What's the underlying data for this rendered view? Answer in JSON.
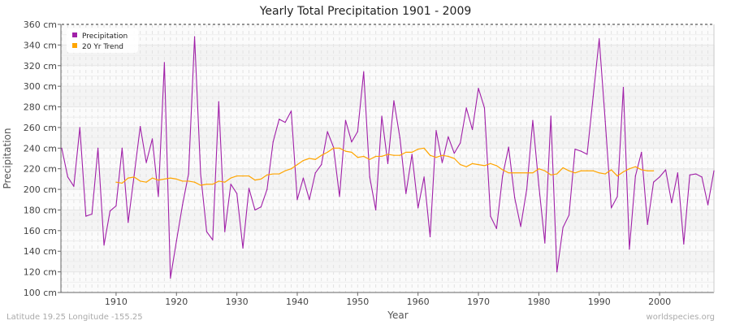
{
  "chart_data": {
    "type": "line",
    "title": "Yearly Total Precipitation 1901 - 2009",
    "xlabel": "Year",
    "ylabel": "Precipitation",
    "xlim": [
      1901,
      2009
    ],
    "ylim": [
      100,
      360
    ],
    "y_unit": "cm",
    "yticks": [
      100,
      120,
      140,
      160,
      180,
      200,
      220,
      240,
      260,
      280,
      300,
      320,
      340,
      360
    ],
    "ytick_labels": [
      "100 cm",
      "120 cm",
      "140 cm",
      "160 cm",
      "180 cm",
      "200 cm",
      "220 cm",
      "240 cm",
      "260 cm",
      "280 cm",
      "300 cm",
      "320 cm",
      "340 cm",
      "360 cm"
    ],
    "xticks": [
      1910,
      1920,
      1930,
      1940,
      1950,
      1960,
      1970,
      1980,
      1990,
      2000
    ],
    "xtick_labels": [
      "1910",
      "1920",
      "1930",
      "1940",
      "1950",
      "1960",
      "1970",
      "1980",
      "1990",
      "2000"
    ],
    "grid": true,
    "legend_position": "top-left",
    "series": [
      {
        "name": "Precipitation",
        "color": "#a020a8",
        "x_start": 1901,
        "values": [
          240,
          212,
          203,
          260,
          174,
          176,
          240,
          146,
          179,
          184,
          240,
          168,
          214,
          261,
          226,
          249,
          193,
          323,
          114,
          150,
          185,
          215,
          348,
          215,
          159,
          151,
          285,
          159,
          205,
          196,
          143,
          201,
          180,
          183,
          200,
          246,
          268,
          265,
          276,
          190,
          211,
          190,
          216,
          224,
          256,
          241,
          193,
          267,
          246,
          256,
          314,
          212,
          180,
          271,
          225,
          286,
          250,
          196,
          234,
          182,
          212,
          154,
          257,
          226,
          251,
          235,
          245,
          279,
          258,
          298,
          279,
          174,
          162,
          213,
          241,
          192,
          164,
          200,
          267,
          204,
          148,
          271,
          120,
          163,
          175,
          239,
          237,
          234,
          290,
          346,
          266,
          182,
          193,
          299,
          142,
          213,
          236,
          166,
          207,
          212,
          219,
          187,
          216,
          147,
          214,
          215,
          212,
          185,
          218
        ]
      },
      {
        "name": "20 Yr Trend",
        "color": "#ffa500",
        "x_start": 1910,
        "values": [
          207,
          206,
          211,
          212,
          208,
          207,
          211,
          209,
          210,
          211,
          210,
          208,
          208,
          207,
          204,
          205,
          205,
          208,
          207,
          211,
          213,
          213,
          213,
          209,
          210,
          214,
          215,
          215,
          218,
          220,
          224,
          228,
          230,
          229,
          233,
          236,
          240,
          240,
          237,
          236,
          231,
          232,
          229,
          232,
          232,
          234,
          233,
          233,
          236,
          236,
          239,
          240,
          233,
          231,
          233,
          232,
          230,
          224,
          222,
          225,
          224,
          223,
          225,
          223,
          219,
          216,
          216,
          216,
          216,
          216,
          220,
          218,
          214,
          215,
          221,
          218,
          216,
          218,
          218,
          218,
          216,
          215,
          219,
          213,
          217,
          220,
          222,
          219,
          218,
          218
        ]
      }
    ]
  },
  "footer": {
    "location": "Latitude 19.25 Longitude -155.25",
    "site": "worldspecies.org"
  }
}
